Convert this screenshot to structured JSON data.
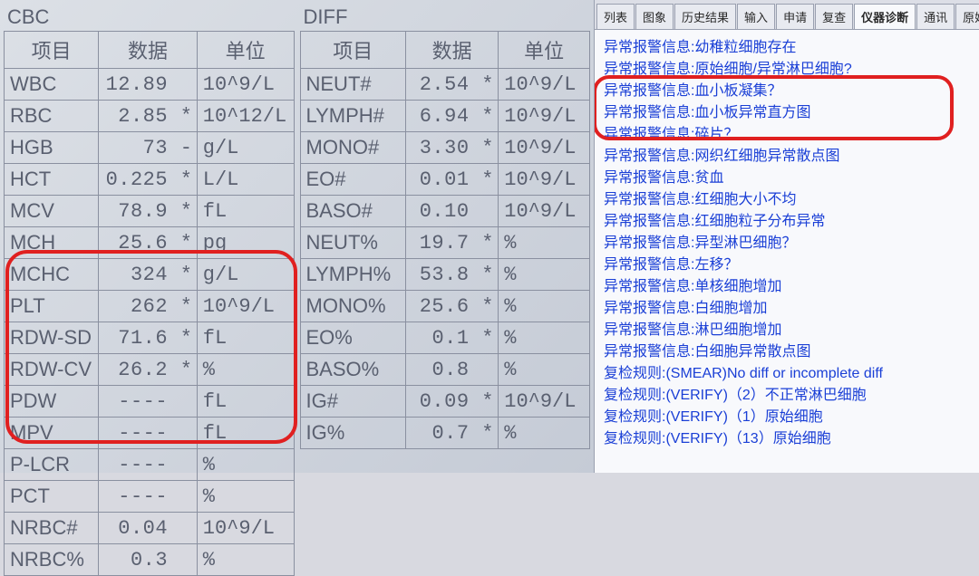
{
  "cbc": {
    "title": "CBC",
    "headers": [
      "项目",
      "数据",
      "单位"
    ],
    "rows": [
      {
        "name": "WBC",
        "value": "12.89",
        "flag": "",
        "unit": "10^9/L"
      },
      {
        "name": "RBC",
        "value": "2.85",
        "flag": "*",
        "unit": "10^12/L"
      },
      {
        "name": "HGB",
        "value": "73",
        "flag": "-",
        "unit": "g/L"
      },
      {
        "name": "HCT",
        "value": "0.225",
        "flag": "*",
        "unit": "L/L"
      },
      {
        "name": "MCV",
        "value": "78.9",
        "flag": "*",
        "unit": "fL"
      },
      {
        "name": "MCH",
        "value": "25.6",
        "flag": "*",
        "unit": "pg"
      },
      {
        "name": "MCHC",
        "value": "324",
        "flag": "*",
        "unit": "g/L"
      },
      {
        "name": "PLT",
        "value": "262",
        "flag": "*",
        "unit": "10^9/L"
      },
      {
        "name": "RDW-SD",
        "value": "71.6",
        "flag": "*",
        "unit": "fL"
      },
      {
        "name": "RDW-CV",
        "value": "26.2",
        "flag": "*",
        "unit": "%"
      },
      {
        "name": "PDW",
        "value": "----",
        "flag": "",
        "unit": "fL"
      },
      {
        "name": "MPV",
        "value": "----",
        "flag": "",
        "unit": "fL"
      },
      {
        "name": "P-LCR",
        "value": "----",
        "flag": "",
        "unit": "%"
      },
      {
        "name": "PCT",
        "value": "----",
        "flag": "",
        "unit": "%"
      },
      {
        "name": "NRBC#",
        "value": "0.04",
        "flag": "",
        "unit": "10^9/L"
      },
      {
        "name": "NRBC%",
        "value": "0.3",
        "flag": "",
        "unit": "%"
      }
    ]
  },
  "diff": {
    "title": "DIFF",
    "headers": [
      "项目",
      "数据",
      "单位"
    ],
    "rows": [
      {
        "name": "NEUT#",
        "value": "2.54",
        "flag": "*",
        "unit": "10^9/L"
      },
      {
        "name": "LYMPH#",
        "value": "6.94",
        "flag": "*",
        "unit": "10^9/L"
      },
      {
        "name": "MONO#",
        "value": "3.30",
        "flag": "*",
        "unit": "10^9/L"
      },
      {
        "name": "EO#",
        "value": "0.01",
        "flag": "*",
        "unit": "10^9/L"
      },
      {
        "name": "BASO#",
        "value": "0.10",
        "flag": "",
        "unit": "10^9/L"
      },
      {
        "name": "NEUT%",
        "value": "19.7",
        "flag": "*",
        "unit": "%"
      },
      {
        "name": "LYMPH%",
        "value": "53.8",
        "flag": "*",
        "unit": "%"
      },
      {
        "name": "MONO%",
        "value": "25.6",
        "flag": "*",
        "unit": "%"
      },
      {
        "name": "EO%",
        "value": "0.1",
        "flag": "*",
        "unit": "%"
      },
      {
        "name": "BASO%",
        "value": "0.8",
        "flag": "",
        "unit": "%"
      },
      {
        "name": "IG#",
        "value": "0.09",
        "flag": "*",
        "unit": "10^9/L"
      },
      {
        "name": "IG%",
        "value": "0.7",
        "flag": "*",
        "unit": "%"
      }
    ]
  },
  "tabs": [
    {
      "label": "列表",
      "active": false
    },
    {
      "label": "图象",
      "active": false
    },
    {
      "label": "历史结果",
      "active": false
    },
    {
      "label": "输入",
      "active": false
    },
    {
      "label": "申请",
      "active": false
    },
    {
      "label": "复查",
      "active": false
    },
    {
      "label": "仪器诊断",
      "active": true
    },
    {
      "label": "通讯",
      "active": false
    },
    {
      "label": "原始结果",
      "active": false
    }
  ],
  "messages": [
    "异常报警信息:幼稚粒细胞存在",
    "异常报警信息:原始细胞/异常淋巴细胞?",
    "异常报警信息:血小板凝集？",
    "异常报警信息:血小板异常直方图",
    "异常报警信息:碎片？",
    "异常报警信息:网织红细胞异常散点图",
    "异常报警信息:贫血",
    "异常报警信息:红细胞大小不均",
    "异常报警信息:红细胞粒子分布异常",
    "异常报警信息:异型淋巴细胞？",
    "异常报警信息:左移？",
    "异常报警信息:单核细胞增加",
    "异常报警信息:白细胞增加",
    "异常报警信息:淋巴细胞增加",
    "异常报警信息:白细胞异常散点图",
    "复检规则:(SMEAR)No diff or incomplete diff",
    "复检规则:(VERIFY)（2）不正常淋巴细胞",
    "复检规则:(VERIFY)（1）原始细胞",
    "复检规则:(VERIFY)（13）原始细胞"
  ],
  "colors": {
    "text_table": "#5a6070",
    "border_table": "#8a90a0",
    "bg_left": "#d6dae2",
    "msg_color": "#1a3fd6",
    "highlight_border": "#e02020"
  }
}
